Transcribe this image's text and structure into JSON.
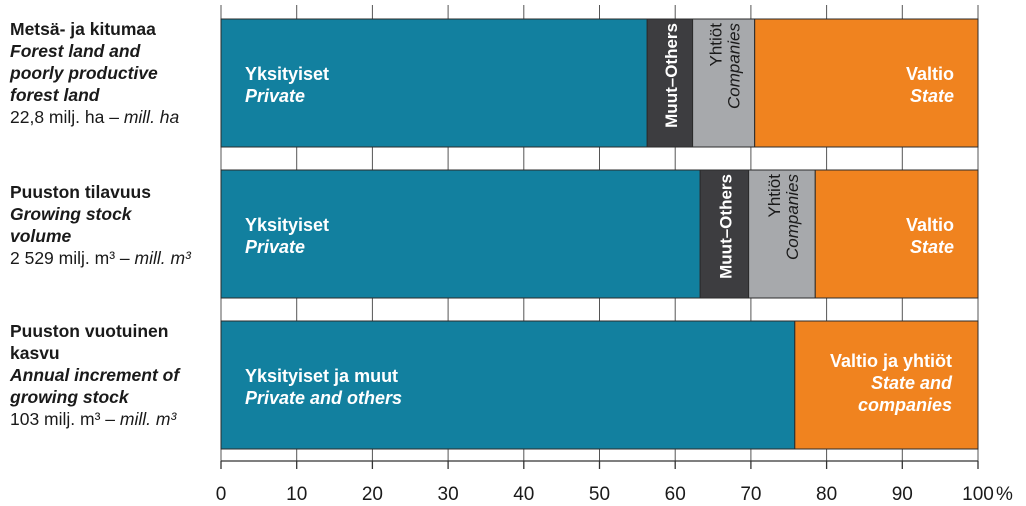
{
  "chart_data": {
    "type": "bar",
    "orientation": "horizontal",
    "stacked": true,
    "xlim": [
      0,
      100
    ],
    "x_ticks": [
      "0",
      "10",
      "20",
      "30",
      "40",
      "50",
      "60",
      "70",
      "80",
      "90",
      "100"
    ],
    "x_unit": "%",
    "categories": [
      {
        "label_fi": "Metsä- ja kitumaa",
        "label_en": "Forest land and poorly productive forest land",
        "total_value": "22,8 milj. ha",
        "total_sep": " – ",
        "total_unit_en": "mill. ha"
      },
      {
        "label_fi": "Puuston tilavuus",
        "label_en": "Growing stock volume",
        "total_value": "2 529 milj. m³",
        "total_sep": " – ",
        "total_unit_en": "mill. m³"
      },
      {
        "label_fi": "Puuston vuotuinen kasvu",
        "label_en": "Annual increment of growing stock",
        "total_value": "103 milj. m³",
        "total_sep": " – ",
        "total_unit_en": "mill. m³"
      }
    ],
    "rows": [
      [
        {
          "key": "private",
          "value": 56.3,
          "label_fi": "Yksityiset",
          "label_en": "Private",
          "color": "#12809f"
        },
        {
          "key": "others",
          "value": 6.0,
          "label": "Muut–Others",
          "color": "#3d3d40"
        },
        {
          "key": "companies",
          "value": 8.2,
          "label_fi": "Yhtiöt",
          "label_en": "Companies",
          "color": "#a7a9ac"
        },
        {
          "key": "state",
          "value": 29.5,
          "label_fi": "Valtio",
          "label_en": "State",
          "color": "#f0831f"
        }
      ],
      [
        {
          "key": "private",
          "value": 63.3,
          "label_fi": "Yksityiset",
          "label_en": "Private",
          "color": "#12809f"
        },
        {
          "key": "others",
          "value": 6.4,
          "label": "Muut–Others",
          "color": "#3d3d40"
        },
        {
          "key": "companies",
          "value": 8.8,
          "label_fi": "Yhtiöt",
          "label_en": "Companies",
          "color": "#a7a9ac"
        },
        {
          "key": "state",
          "value": 21.5,
          "label_fi": "Valtio",
          "label_en": "State",
          "color": "#f0831f"
        }
      ],
      [
        {
          "key": "private_and_others",
          "value": 75.8,
          "label_fi": "Yksityiset ja muut",
          "label_en": "Private and others",
          "color": "#12809f"
        },
        {
          "key": "state_and_companies",
          "value": 24.2,
          "label_fi": "Valtio ja yhtiöt",
          "label_en": "State and companies",
          "color": "#f0831f"
        }
      ]
    ],
    "grid": "vertical tick marks between bars"
  }
}
